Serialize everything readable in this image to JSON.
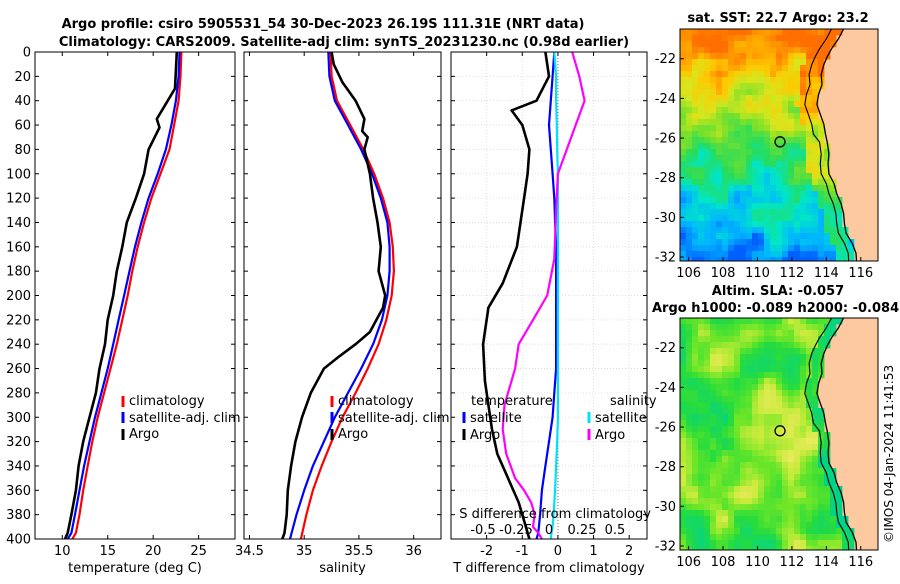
{
  "title_line1": "Argo profile: csiro 5905531_54 30-Dec-2023 26.19S 111.31E (NRT data)",
  "title_line2": "Climatology: CARS2009. Satellite-adj clim: synTS_20231230.nc (0.98d earlier)",
  "colors": {
    "climatology": "#ff0000",
    "satellite": "#0000ff",
    "argo": "#000000",
    "sal_satellite": "#00e0ff",
    "sal_argo": "#ff00ff",
    "land": "#fdc9a0"
  },
  "stamp": "©IMOS 04-Jan-2024 11:41:53",
  "chart_data": [
    {
      "id": "temperature",
      "type": "line",
      "xlabel": "temperature (deg C)",
      "xlim": [
        7,
        29
      ],
      "xticks": [
        10,
        15,
        20,
        25
      ],
      "ylim": [
        0,
        400
      ],
      "yticks": [
        0,
        20,
        40,
        60,
        80,
        100,
        120,
        140,
        160,
        180,
        200,
        220,
        240,
        260,
        280,
        300,
        320,
        340,
        360,
        380,
        400
      ],
      "legend": [
        "climatology",
        "satellite-adj. clim",
        "Argo"
      ],
      "series": [
        {
          "name": "climatology",
          "color": "#ff0000",
          "x": [
            23.1,
            23.0,
            22.8,
            22.3,
            21.8,
            20.8,
            19.8,
            19.0,
            18.3,
            17.7,
            17.2,
            16.6,
            16.0,
            15.3,
            14.6,
            13.9,
            13.3,
            12.8,
            12.3,
            11.9,
            11.5,
            11.1
          ],
          "y": [
            0,
            20,
            40,
            60,
            80,
            100,
            120,
            140,
            160,
            180,
            200,
            220,
            240,
            260,
            280,
            300,
            320,
            340,
            360,
            380,
            395,
            400
          ]
        },
        {
          "name": "satellite-adj. clim",
          "color": "#0000ff",
          "x": [
            22.9,
            22.8,
            22.5,
            22.0,
            21.4,
            20.5,
            19.5,
            18.7,
            18.0,
            17.4,
            16.8,
            16.2,
            15.6,
            15.0,
            14.3,
            13.6,
            13.0,
            12.4,
            11.9,
            11.4,
            11.0,
            10.6
          ],
          "y": [
            0,
            20,
            40,
            60,
            80,
            100,
            120,
            140,
            160,
            180,
            200,
            220,
            240,
            260,
            280,
            300,
            320,
            340,
            360,
            380,
            395,
            400
          ]
        },
        {
          "name": "Argo",
          "color": "#000000",
          "x": [
            22.6,
            22.5,
            22.4,
            21.2,
            20.4,
            20.7,
            19.5,
            19.0,
            18.1,
            17.1,
            16.6,
            16.0,
            15.6,
            15.0,
            14.7,
            14.1,
            13.7,
            13.0,
            12.3,
            11.8,
            11.5,
            11.0,
            10.6,
            10.3
          ],
          "y": [
            0,
            15,
            30,
            45,
            55,
            62,
            80,
            100,
            120,
            140,
            160,
            180,
            200,
            220,
            240,
            260,
            280,
            300,
            320,
            340,
            360,
            380,
            395,
            400
          ]
        }
      ]
    },
    {
      "id": "salinity",
      "type": "line",
      "xlabel": "salinity",
      "xlim": [
        34.45,
        36.25
      ],
      "xticks": [
        34.5,
        35,
        35.5,
        36
      ],
      "xticklabels": [
        "34.5",
        "35",
        "35.5",
        "36"
      ],
      "ylim": [
        0,
        400
      ],
      "legend": [
        "climatology",
        "satellite-adj. clim",
        "Argo"
      ],
      "series": [
        {
          "name": "climatology",
          "color": "#ff0000",
          "x": [
            35.24,
            35.25,
            35.3,
            35.42,
            35.54,
            35.64,
            35.72,
            35.78,
            35.81,
            35.82,
            35.8,
            35.75,
            35.68,
            35.58,
            35.47,
            35.35,
            35.25,
            35.16,
            35.08,
            35.02,
            34.97
          ],
          "y": [
            0,
            20,
            40,
            60,
            80,
            100,
            120,
            140,
            160,
            180,
            200,
            220,
            240,
            260,
            280,
            300,
            320,
            340,
            360,
            380,
            400
          ]
        },
        {
          "name": "satellite-adj. clim",
          "color": "#0000ff",
          "x": [
            35.22,
            35.23,
            35.28,
            35.4,
            35.52,
            35.62,
            35.7,
            35.76,
            35.78,
            35.78,
            35.76,
            35.71,
            35.63,
            35.52,
            35.4,
            35.28,
            35.18,
            35.08,
            35.0,
            34.93,
            34.87
          ],
          "y": [
            0,
            20,
            40,
            60,
            80,
            100,
            120,
            140,
            160,
            180,
            200,
            220,
            240,
            260,
            280,
            300,
            320,
            340,
            360,
            380,
            400
          ]
        },
        {
          "name": "Argo",
          "color": "#000000",
          "x": [
            35.25,
            35.27,
            35.35,
            35.47,
            35.55,
            35.53,
            35.58,
            35.55,
            35.6,
            35.63,
            35.67,
            35.7,
            35.68,
            35.74,
            35.72,
            35.66,
            35.6,
            35.47,
            35.32,
            35.18,
            35.06,
            34.98,
            34.92,
            34.88,
            34.85,
            34.84,
            34.82,
            34.8
          ],
          "y": [
            0,
            10,
            25,
            40,
            55,
            65,
            70,
            80,
            100,
            120,
            140,
            160,
            180,
            200,
            210,
            220,
            230,
            240,
            250,
            260,
            280,
            300,
            320,
            340,
            360,
            380,
            395,
            400
          ]
        }
      ]
    },
    {
      "id": "differences",
      "type": "line",
      "xlabel": "T difference from climatology",
      "xlim": [
        -3,
        2.5
      ],
      "xticks": [
        -2,
        -1,
        0,
        1,
        2
      ],
      "xticklabels": [
        "-2",
        "-1",
        "0",
        "1",
        "2"
      ],
      "top_axis_label": "S difference from climatology",
      "top_ticks": [
        "-0.5",
        "-0.25",
        "0",
        "0.25",
        "0.5"
      ],
      "ylim": [
        0,
        400
      ],
      "legend_temperature_title": "temperature",
      "legend_salinity_title": "salinity",
      "legend_temperature": [
        "satellite",
        "Argo"
      ],
      "legend_salinity": [
        "satellite",
        "Argo"
      ],
      "series": [
        {
          "name": "T satellite",
          "color": "#0000ff",
          "x": [
            -0.1,
            -0.15,
            -0.2,
            -0.25,
            -0.2,
            -0.15,
            -0.1,
            -0.08,
            -0.05,
            -0.05,
            -0.05,
            -0.05,
            -0.05,
            -0.05,
            -0.1,
            -0.15,
            -0.25,
            -0.35,
            -0.45,
            -0.5,
            -0.55,
            -0.6
          ],
          "y": [
            0,
            20,
            40,
            60,
            80,
            100,
            120,
            140,
            160,
            180,
            200,
            220,
            240,
            260,
            280,
            300,
            320,
            340,
            360,
            380,
            395,
            400
          ]
        },
        {
          "name": "T Argo",
          "color": "#000000",
          "x": [
            -0.35,
            -0.25,
            -0.6,
            -1.3,
            -1.0,
            -0.8,
            -0.85,
            -0.95,
            -1.05,
            -1.15,
            -1.55,
            -1.95,
            -2.1,
            -2.05,
            -1.95,
            -1.85,
            -1.7,
            -1.4,
            -1.1,
            -0.95,
            -0.85,
            -0.8
          ],
          "y": [
            0,
            20,
            40,
            48,
            60,
            80,
            100,
            120,
            140,
            160,
            190,
            210,
            240,
            270,
            290,
            310,
            330,
            350,
            370,
            385,
            395,
            400
          ]
        },
        {
          "name": "S satellite",
          "color": "#00e0ff",
          "x": [
            -0.1,
            -0.05,
            -0.05,
            -0.03,
            -0.02,
            0.0,
            0.0,
            0.0,
            0.0,
            0.0,
            0.0,
            0.0,
            -0.02,
            -0.05,
            -0.08,
            -0.1,
            -0.12,
            -0.15,
            -0.18,
            -0.2
          ],
          "y": [
            0,
            20,
            40,
            60,
            80,
            100,
            140,
            180,
            220,
            260,
            280,
            300,
            320,
            340,
            360,
            370,
            380,
            390,
            395,
            400
          ]
        },
        {
          "name": "S Argo",
          "color": "#ff00ff",
          "x": [
            0.4,
            0.6,
            0.75,
            0.5,
            0.25,
            0.0,
            -0.05,
            -0.1,
            -0.3,
            -0.7,
            -1.1,
            -1.2,
            -1.5,
            -1.55,
            -1.45,
            -1.2,
            -0.95,
            -0.75,
            -0.65,
            -0.7,
            -0.55,
            -0.45
          ],
          "y": [
            0,
            20,
            40,
            60,
            80,
            100,
            130,
            170,
            200,
            220,
            240,
            260,
            290,
            310,
            330,
            350,
            360,
            370,
            380,
            390,
            395,
            400
          ]
        }
      ]
    },
    {
      "id": "sst_map",
      "type": "heatmap",
      "title": "sat. SST: 22.7 Argo: 23.2",
      "xticks": [
        106,
        108,
        110,
        112,
        114,
        116
      ],
      "yticks": [
        -22,
        -24,
        -26,
        -28,
        -30,
        -32
      ],
      "xlim": [
        105.5,
        117
      ],
      "ylim": [
        -32.2,
        -20.5
      ],
      "argo_position": {
        "lon": 111.31,
        "lat": -26.19
      }
    },
    {
      "id": "sla_map",
      "type": "heatmap",
      "title_line1": "Altim. SLA: -0.057",
      "title_line2": "Argo h1000: -0.089 h2000: -0.084",
      "xticks": [
        106,
        108,
        110,
        112,
        114,
        116
      ],
      "yticks": [
        -22,
        -24,
        -26,
        -28,
        -30,
        -32
      ],
      "xlim": [
        105.5,
        117
      ],
      "ylim": [
        -32.2,
        -20.5
      ],
      "argo_position": {
        "lon": 111.31,
        "lat": -26.19
      }
    }
  ]
}
